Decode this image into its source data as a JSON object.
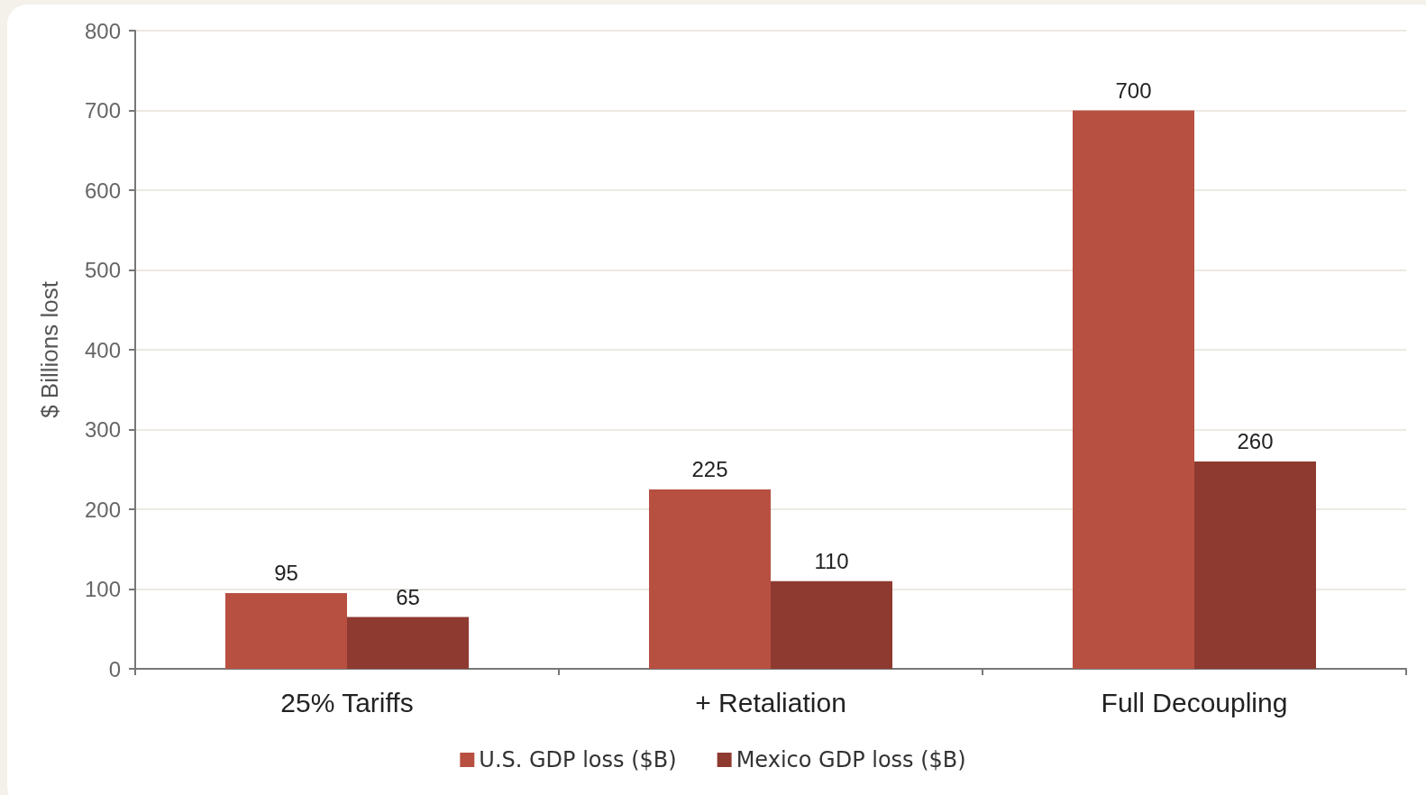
{
  "chart_data": {
    "type": "bar",
    "ylabel": "$ Billions lost",
    "categories": [
      "25% Tariffs",
      "+ Retaliation",
      "Full Decoupling"
    ],
    "series": [
      {
        "name": "U.S. GDP loss ($B)",
        "color": "#b85042",
        "values": [
          95,
          225,
          700
        ]
      },
      {
        "name": "Mexico GDP loss ($B)",
        "color": "#8e3a30",
        "values": [
          65,
          110,
          260
        ]
      }
    ],
    "ylim": [
      0,
      800
    ],
    "yticks": [
      0,
      100,
      200,
      300,
      400,
      500,
      600,
      700,
      800
    ],
    "grid": "y",
    "legend": "bottom",
    "data_labels": true
  }
}
